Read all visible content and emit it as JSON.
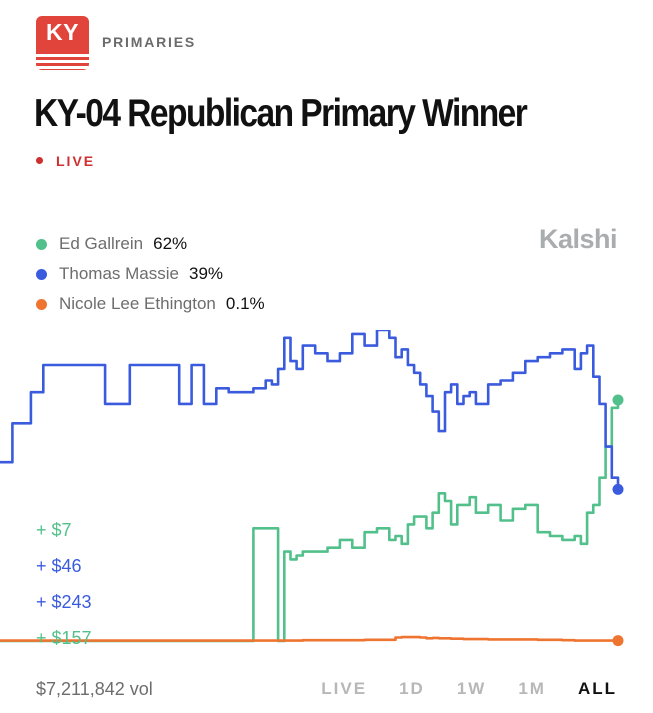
{
  "header": {
    "badge_text": "KY",
    "section": "PRIMARIES",
    "title": "KY-04 Republican Primary Winner",
    "live_label": "LIVE",
    "brand": "Kalshi"
  },
  "legend": [
    {
      "name": "Ed Gallrein",
      "pct": "62%",
      "color": "#52c08a"
    },
    {
      "name": "Thomas Massie",
      "pct": "39%",
      "color": "#3a5bde"
    },
    {
      "name": "Nicole Lee Ethington",
      "pct": "0.1%",
      "color": "#ef7430"
    }
  ],
  "volumes": [
    {
      "text": "+ $7",
      "color": "#52c08a"
    },
    {
      "text": "+ $46",
      "color": "#3a5bde"
    },
    {
      "text": "+ $243",
      "color": "#3a5bde"
    },
    {
      "text": "+ $157",
      "color": "#52c08a"
    }
  ],
  "footer": {
    "volume": "$7,211,842 vol",
    "ranges": [
      "LIVE",
      "1D",
      "1W",
      "1M",
      "ALL"
    ],
    "active_range": "ALL"
  },
  "chart_data": {
    "type": "line",
    "title": "KY-04 Republican Primary Winner",
    "xlabel": "",
    "ylabel": "",
    "ylim": [
      0,
      80
    ],
    "grid": false,
    "legend_position": "top-left",
    "x": [
      0,
      2,
      5,
      7,
      9,
      11,
      13,
      15,
      17,
      19,
      21,
      23,
      25,
      27,
      29,
      31,
      33,
      35,
      37,
      39,
      41,
      43,
      44,
      45,
      46,
      47,
      48,
      49,
      51,
      53,
      55,
      57,
      59,
      61,
      63,
      64,
      65,
      66,
      67,
      68,
      69,
      70,
      71,
      72,
      73,
      74,
      75,
      76,
      77,
      79,
      81,
      83,
      85,
      87,
      89,
      91,
      93,
      94,
      95,
      96,
      97,
      98,
      99,
      100
    ],
    "series": [
      {
        "name": "Ed Gallrein",
        "color": "#52c08a",
        "values": [
          0,
          0,
          0,
          0,
          0,
          0,
          0,
          0,
          0,
          0,
          0,
          0,
          0,
          0,
          0,
          0,
          0,
          0,
          0,
          0,
          29,
          29,
          29,
          0,
          23,
          21,
          22,
          23,
          23,
          24,
          26,
          24,
          28,
          29,
          26,
          27,
          25,
          30,
          32,
          32,
          29,
          33,
          38,
          36,
          30,
          35,
          35,
          37,
          33,
          35,
          31,
          34,
          35,
          28,
          27,
          26,
          27,
          25,
          33,
          35,
          42,
          50,
          60,
          62
        ]
      },
      {
        "name": "Thomas Massie",
        "color": "#3a5bde",
        "values": [
          46,
          56,
          64,
          71,
          71,
          71,
          71,
          71,
          61,
          61,
          71,
          71,
          71,
          71,
          61,
          71,
          61,
          65,
          64,
          64,
          65,
          67,
          66,
          70,
          78,
          72,
          70,
          76,
          74,
          72,
          74,
          79,
          76,
          80,
          78,
          73,
          75,
          71,
          69,
          66,
          63,
          59,
          54,
          64,
          66,
          61,
          63,
          64,
          61,
          66,
          67,
          69,
          72,
          73,
          74,
          75,
          70,
          74,
          76,
          68,
          61,
          50,
          42,
          39
        ]
      },
      {
        "name": "Nicole Lee Ethington",
        "color": "#ef7430",
        "values": [
          0.1,
          0.1,
          0.1,
          0.1,
          0.1,
          0.1,
          0.1,
          0.1,
          0.1,
          0.1,
          0.1,
          0.1,
          0.1,
          0.1,
          0.1,
          0.1,
          0.1,
          0.1,
          0.1,
          0.1,
          0.1,
          0.1,
          0.1,
          0.1,
          0.1,
          0.1,
          0.1,
          0.2,
          0.2,
          0.2,
          0.2,
          0.2,
          0.3,
          0.3,
          0.3,
          0.9,
          1.0,
          1.0,
          1.0,
          0.9,
          0.7,
          0.8,
          0.7,
          0.7,
          0.6,
          0.6,
          0.5,
          0.5,
          0.5,
          0.4,
          0.4,
          0.4,
          0.4,
          0.3,
          0.3,
          0.2,
          0.1,
          0.1,
          0.1,
          0.1,
          0.1,
          0.1,
          0.1,
          0.1
        ]
      }
    ]
  }
}
